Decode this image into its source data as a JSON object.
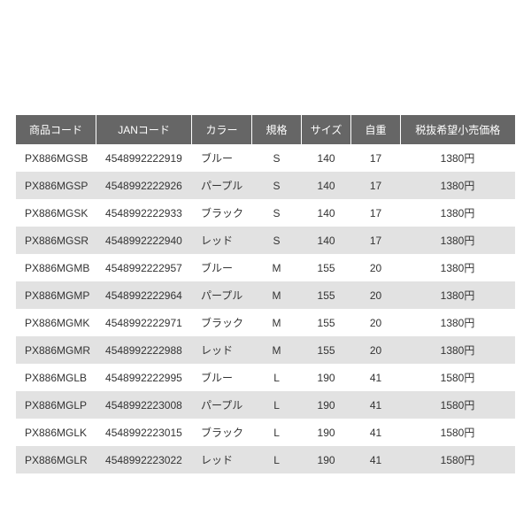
{
  "table": {
    "header_bg": "#666666",
    "header_fg": "#ffffff",
    "row_odd_bg": "#ffffff",
    "row_even_bg": "#e2e2e2",
    "text_color": "#333333",
    "columns": [
      {
        "key": "code",
        "label": "商品コード",
        "align": "left"
      },
      {
        "key": "jan",
        "label": "JANコード",
        "align": "left"
      },
      {
        "key": "color",
        "label": "カラー",
        "align": "left"
      },
      {
        "key": "spec",
        "label": "規格",
        "align": "center"
      },
      {
        "key": "size",
        "label": "サイズ",
        "align": "center"
      },
      {
        "key": "wt",
        "label": "自重",
        "align": "center"
      },
      {
        "key": "price",
        "label": "税抜希望小売価格",
        "align": "center"
      }
    ],
    "rows": [
      {
        "code": "PX886MGSB",
        "jan": "4548992222919",
        "color": "ブルー",
        "spec": "S",
        "size": "140",
        "wt": "17",
        "price": "1380円"
      },
      {
        "code": "PX886MGSP",
        "jan": "4548992222926",
        "color": "パープル",
        "spec": "S",
        "size": "140",
        "wt": "17",
        "price": "1380円"
      },
      {
        "code": "PX886MGSK",
        "jan": "4548992222933",
        "color": "ブラック",
        "spec": "S",
        "size": "140",
        "wt": "17",
        "price": "1380円"
      },
      {
        "code": "PX886MGSR",
        "jan": "4548992222940",
        "color": "レッド",
        "spec": "S",
        "size": "140",
        "wt": "17",
        "price": "1380円"
      },
      {
        "code": "PX886MGMB",
        "jan": "4548992222957",
        "color": "ブルー",
        "spec": "M",
        "size": "155",
        "wt": "20",
        "price": "1380円"
      },
      {
        "code": "PX886MGMP",
        "jan": "4548992222964",
        "color": "パープル",
        "spec": "M",
        "size": "155",
        "wt": "20",
        "price": "1380円"
      },
      {
        "code": "PX886MGMK",
        "jan": "4548992222971",
        "color": "ブラック",
        "spec": "M",
        "size": "155",
        "wt": "20",
        "price": "1380円"
      },
      {
        "code": "PX886MGMR",
        "jan": "4548992222988",
        "color": "レッド",
        "spec": "M",
        "size": "155",
        "wt": "20",
        "price": "1380円"
      },
      {
        "code": "PX886MGLB",
        "jan": "4548992222995",
        "color": "ブルー",
        "spec": "L",
        "size": "190",
        "wt": "41",
        "price": "1580円"
      },
      {
        "code": "PX886MGLP",
        "jan": "4548992223008",
        "color": "パープル",
        "spec": "L",
        "size": "190",
        "wt": "41",
        "price": "1580円"
      },
      {
        "code": "PX886MGLK",
        "jan": "4548992223015",
        "color": "ブラック",
        "spec": "L",
        "size": "190",
        "wt": "41",
        "price": "1580円"
      },
      {
        "code": "PX886MGLR",
        "jan": "4548992223022",
        "color": "レッド",
        "spec": "L",
        "size": "190",
        "wt": "41",
        "price": "1580円"
      }
    ]
  }
}
